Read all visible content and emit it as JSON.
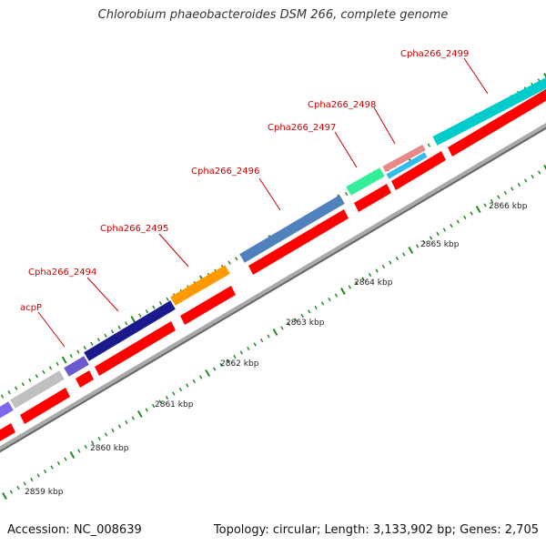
{
  "title": "Chlorobium phaeobacteroides DSM 266, complete genome",
  "accession": "Accession: NC_008639",
  "summary": "Topology: circular; Length: 3,133,902 bp; Genes: 2,705",
  "colors": {
    "label": "#cc0000",
    "ticks": "#228822",
    "reverse_strand": "#ff0000",
    "backbone": "#777777"
  },
  "gene_labels": [
    "acpP",
    "Cpha266_2494",
    "Cpha266_2495",
    "Cpha266_2496",
    "Cpha266_2497",
    "Cpha266_2498",
    "Cpha266_2499"
  ],
  "scale_labels": [
    "2859 kbp",
    "2860 kbp",
    "2861 kbp",
    "2862 kbp",
    "2863 kbp",
    "2864 kbp",
    "2865 kbp",
    "2866 kbp"
  ],
  "forward_features": [
    {
      "color": "#7b68ee"
    },
    {
      "color": "#c0c0c0"
    },
    {
      "color": "#6a5acd"
    },
    {
      "color": "#1a1a8c"
    },
    {
      "color": "#ff9900"
    },
    {
      "color": "#4f81bd"
    },
    {
      "color": "#33ee99"
    },
    {
      "color": "#e88888"
    },
    {
      "color": "#00cccc"
    }
  ]
}
